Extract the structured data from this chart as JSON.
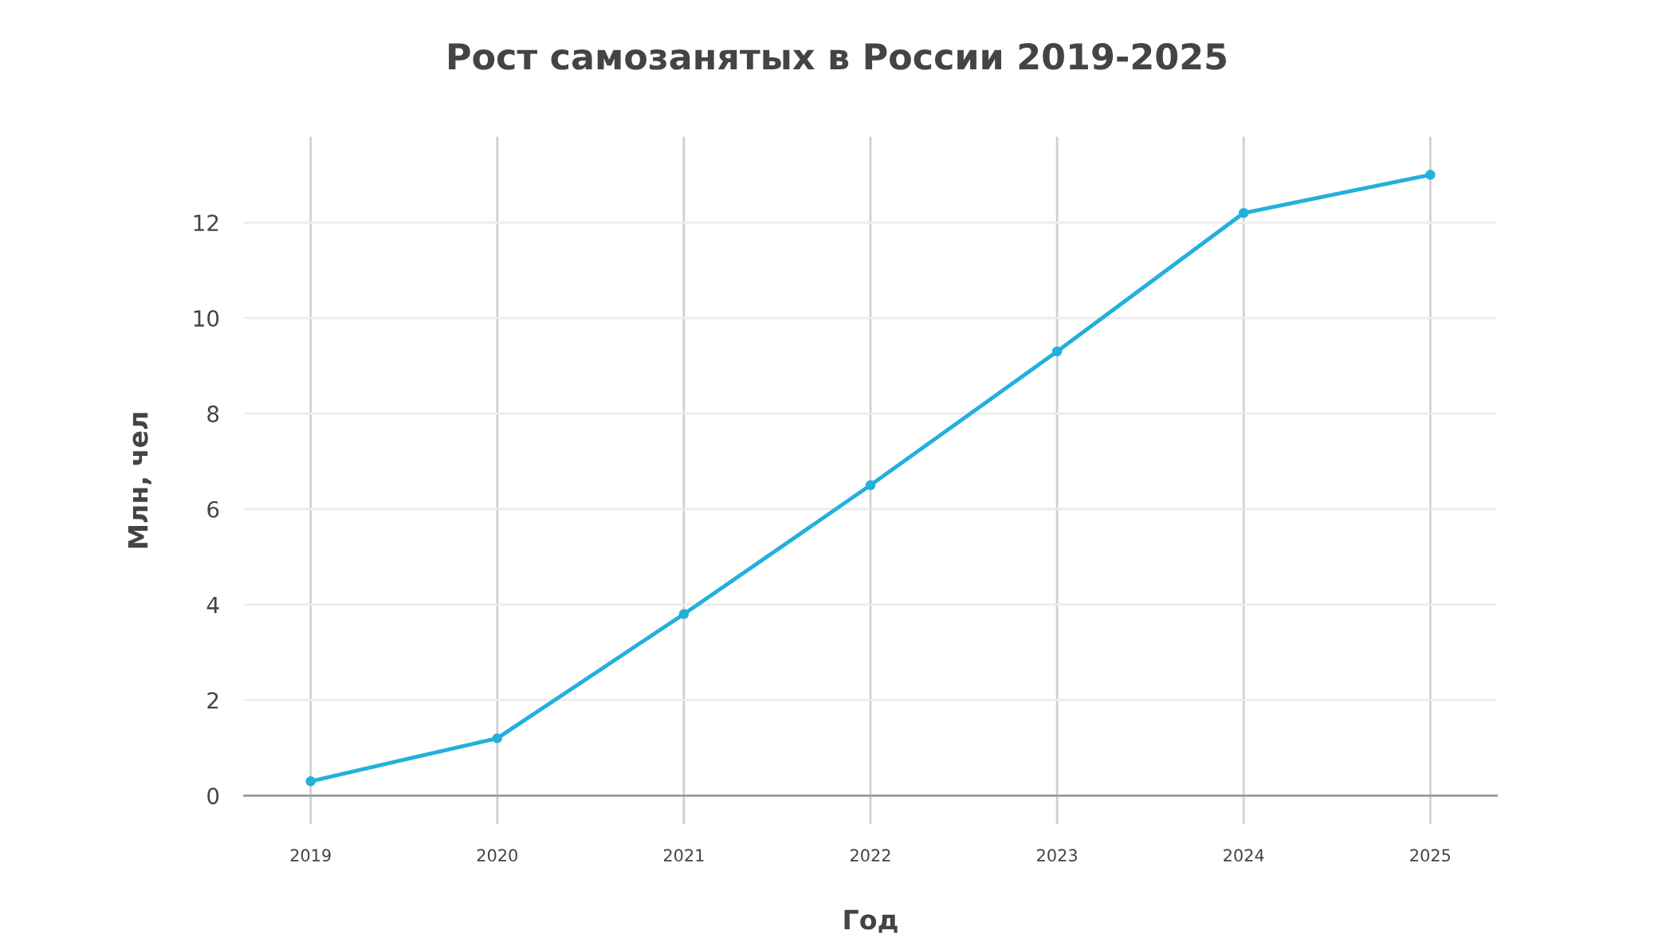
{
  "chart_data": {
    "type": "line",
    "title": "Рост самозанятых в России 2019-2025",
    "xlabel": "Год",
    "ylabel": "Млн, чел",
    "categories": [
      "2019",
      "2020",
      "2021",
      "2022",
      "2023",
      "2024",
      "2025"
    ],
    "series": [
      {
        "color": "#22b0dc",
        "values": [
          0.3,
          1.2,
          3.8,
          6.5,
          9.3,
          12.2,
          13.0
        ]
      }
    ],
    "ylim": [
      -0.6,
      13.8
    ],
    "yticks": [
      0,
      2,
      4,
      6,
      8,
      10,
      12
    ],
    "grid": true,
    "marker": "circle",
    "line_style": "solid"
  }
}
